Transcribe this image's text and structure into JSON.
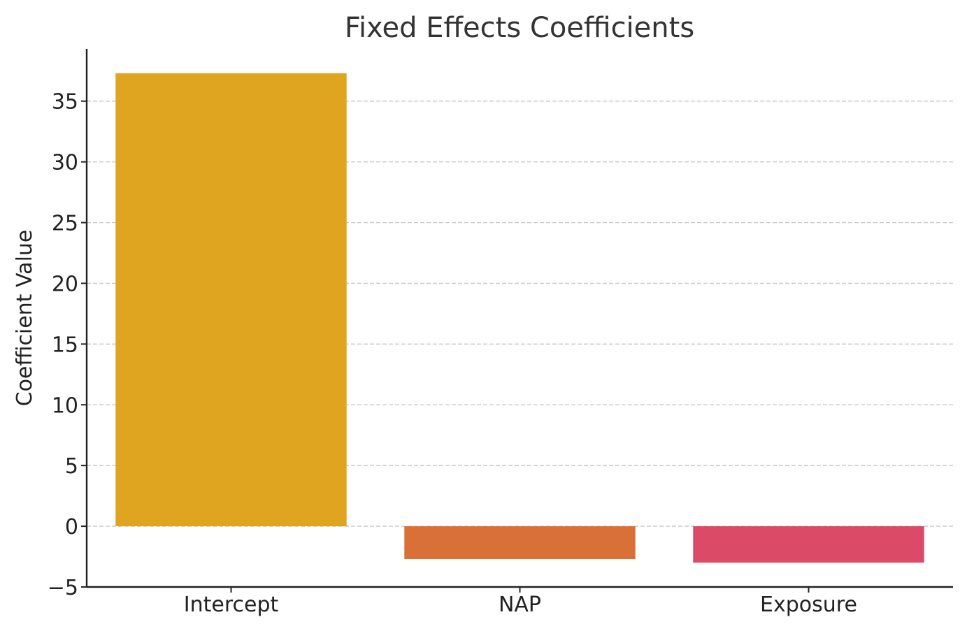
{
  "chart_data": {
    "type": "bar",
    "title": "Fixed Effects Coefficients",
    "xlabel": "",
    "ylabel": "Coefficient Value",
    "categories": [
      "Intercept",
      "NAP",
      "Exposure"
    ],
    "values": [
      37.3,
      -2.7,
      -3.0
    ],
    "colors": [
      "#DFA420",
      "#D97038",
      "#DB4A66"
    ],
    "ylim": [
      -5,
      39.3
    ],
    "yticks": [
      -5,
      0,
      5,
      10,
      15,
      20,
      25,
      30,
      35
    ],
    "ytick_labels": [
      "−5",
      "0",
      "5",
      "10",
      "15",
      "20",
      "25",
      "30",
      "35"
    ],
    "grid": "horizontal dashed",
    "legend": "none"
  }
}
